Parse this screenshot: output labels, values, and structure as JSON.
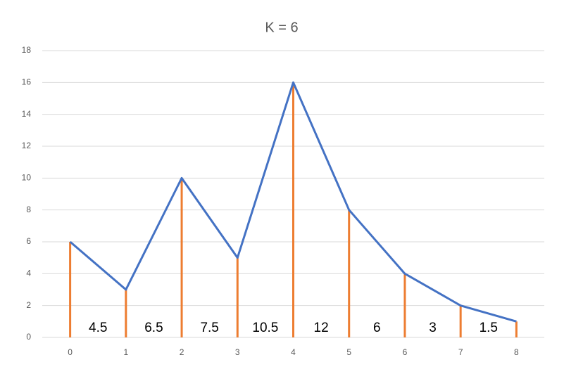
{
  "chart_data": {
    "type": "line",
    "title": "K = 6",
    "x": [
      0,
      1,
      2,
      3,
      4,
      5,
      6,
      7,
      8
    ],
    "series": [
      {
        "color": "#4472c4",
        "stem_color": "#ed7d31",
        "values": [
          6,
          3,
          10,
          5,
          16,
          8,
          4,
          2,
          1
        ]
      }
    ],
    "interval_labels": [
      4.5,
      6.5,
      7.5,
      10.5,
      12,
      6,
      3,
      1.5
    ],
    "xlim": [
      -0.5,
      8.5
    ],
    "xticks": [
      0,
      1,
      2,
      3,
      4,
      5,
      6,
      7,
      8
    ],
    "ylim": [
      0,
      18
    ],
    "yticks": [
      0,
      2,
      4,
      6,
      8,
      10,
      12,
      14,
      16,
      18
    ],
    "grid": true
  }
}
